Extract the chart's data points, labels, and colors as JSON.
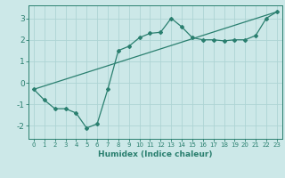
{
  "xlabel": "Humidex (Indice chaleur)",
  "ylabel": "",
  "background_color": "#cce8e8",
  "line_color": "#2a7f6f",
  "grid_color": "#aed4d4",
  "xlim": [
    -0.5,
    23.5
  ],
  "ylim": [
    -2.6,
    3.6
  ],
  "yticks": [
    -2,
    -1,
    0,
    1,
    2,
    3
  ],
  "xticks": [
    0,
    1,
    2,
    3,
    4,
    5,
    6,
    7,
    8,
    9,
    10,
    11,
    12,
    13,
    14,
    15,
    16,
    17,
    18,
    19,
    20,
    21,
    22,
    23
  ],
  "curve_x": [
    0,
    1,
    2,
    3,
    4,
    5,
    6,
    7,
    8,
    9,
    10,
    11,
    12,
    13,
    14,
    15,
    16,
    17,
    18,
    19,
    20,
    21,
    22,
    23
  ],
  "curve_y": [
    -0.3,
    -0.8,
    -1.2,
    -1.2,
    -1.4,
    -2.1,
    -1.9,
    -0.3,
    1.5,
    1.7,
    2.1,
    2.3,
    2.35,
    3.0,
    2.6,
    2.1,
    2.0,
    2.0,
    1.95,
    2.0,
    2.0,
    2.2,
    3.0,
    3.3
  ],
  "line2_x": [
    0,
    23
  ],
  "line2_y": [
    -0.3,
    3.3
  ]
}
